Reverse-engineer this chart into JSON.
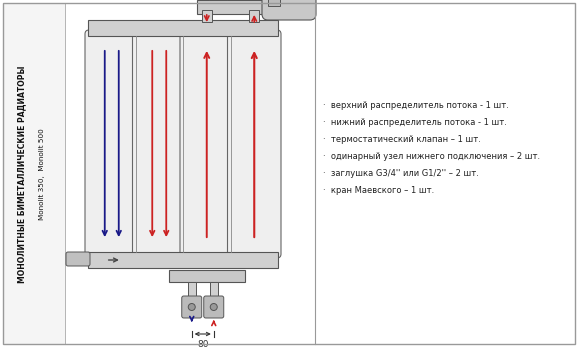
{
  "bg_color": "#ffffff",
  "border_color": "#999999",
  "red_flow": "#cc2222",
  "blue_flow": "#1a1a88",
  "dark_flow": "#333333",
  "left_text_line1": "МОНОЛИТНЫЕ БИМЕТАЛЛИЧЕСКИЕ РАДИАТОРЫ",
  "left_text_line2": "Monolit 350,  Monolit 500",
  "bullet_items": [
    "верхний распределитель потока - 1 шт.",
    "нижний распределитель потока - 1 шт.",
    "термостатический клапан – 1 шт.",
    "одинарный узел нижнего подключения – 2 шт.",
    "заглушка G3/4'' или G1/2'' – 2 шт.",
    "кран Маевского – 1 шт."
  ],
  "dimension_label": "80",
  "fig_width": 5.78,
  "fig_height": 3.47
}
